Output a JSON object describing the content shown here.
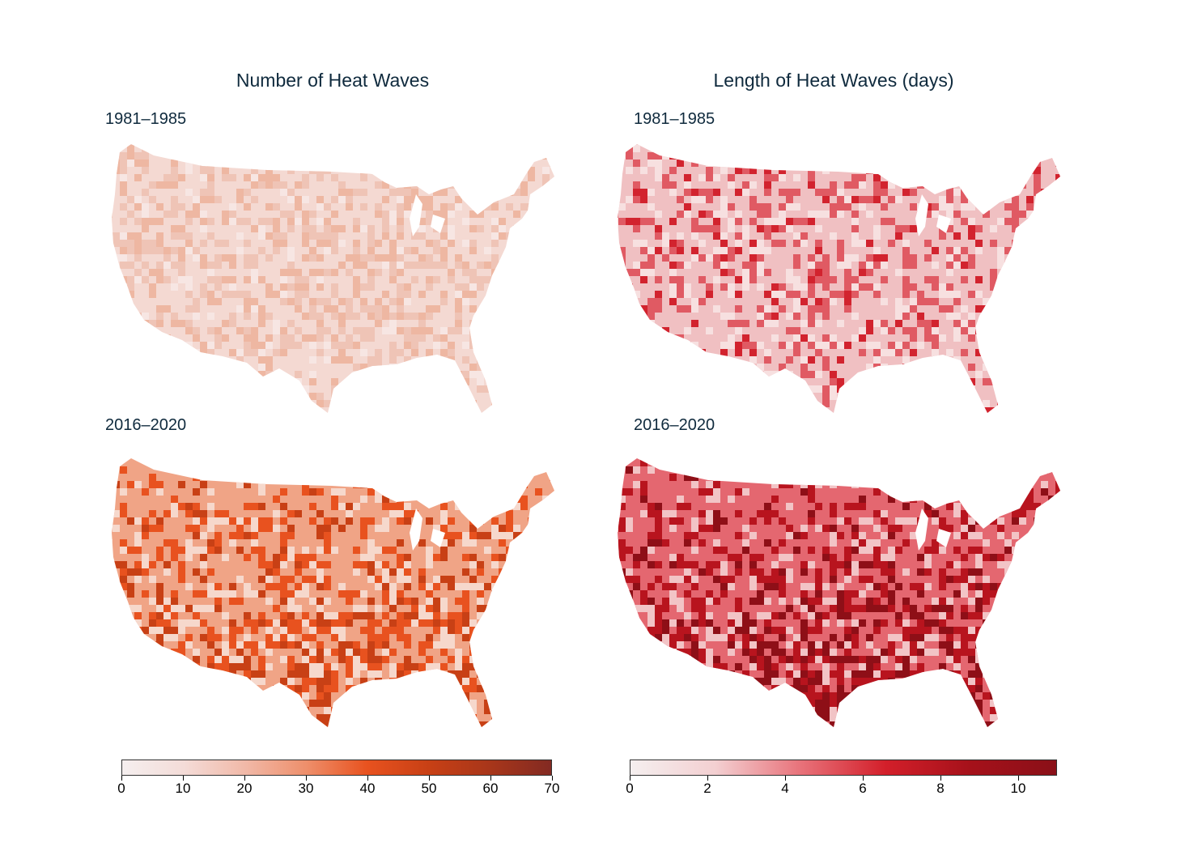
{
  "panels": {
    "left": {
      "title": "Number of Heat Waves",
      "top_period": "1981–1985",
      "bottom_period": "2016–2020",
      "colorbar": {
        "ticks": [
          "0",
          "10",
          "20",
          "30",
          "40",
          "50",
          "60",
          "70"
        ],
        "colors": [
          "#f5efef",
          "#f4dcd8",
          "#f1b9a8",
          "#ee8f6b",
          "#e8521f",
          "#c84015",
          "#a8361a",
          "#832a22"
        ],
        "min": 0,
        "max": 70
      }
    },
    "right": {
      "title": "Length of Heat Waves (days)",
      "top_period": "1981–1985",
      "bottom_period": "2016–2020",
      "colorbar": {
        "ticks": [
          "0",
          "2",
          "4",
          "6",
          "8",
          "10"
        ],
        "colors": [
          "#f5efef",
          "#f3cfd1",
          "#e8727a",
          "#d31f2a",
          "#a5111a",
          "#8a1018"
        ],
        "min": 0,
        "max": 11
      }
    }
  },
  "map_styles": {
    "left_top": {
      "base": "#f4d9d2",
      "accents": [
        "#efc4b6",
        "#f7e6e3",
        "#eeb7a2"
      ]
    },
    "left_bottom": {
      "base": "#f0a486",
      "accents": [
        "#e8521f",
        "#c84015",
        "#f6d8cc"
      ]
    },
    "right_top": {
      "base": "#f0c0c2",
      "accents": [
        "#e05a63",
        "#d2232e",
        "#f7e0e0"
      ]
    },
    "right_bottom": {
      "base": "#e46770",
      "accents": [
        "#b8141e",
        "#8e0f17",
        "#f2c4c6"
      ]
    }
  }
}
